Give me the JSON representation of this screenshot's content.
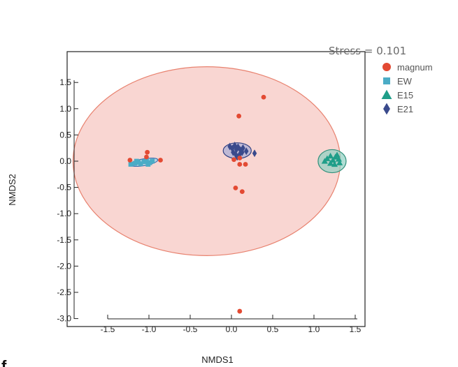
{
  "panel_letter": "f",
  "colors": {
    "magnum": "#e34a33",
    "EW": "#4bacc6",
    "E15": "#1f9e89",
    "E21": "#3a4a8c",
    "magnum_fill": "#f4b5ad",
    "magnum_edge": "#e8826f"
  },
  "chart_data": {
    "type": "scatter",
    "title": "",
    "xlabel": "NMDS1",
    "ylabel": "NMDS2",
    "annotation": "Stress = 0.101",
    "xlim": [
      -1.95,
      1.55
    ],
    "ylim": [
      -3.1,
      1.9
    ],
    "xticks": [
      -1.5,
      -1.0,
      -0.5,
      0.0,
      0.5,
      1.0,
      1.5
    ],
    "xtick_labels": [
      "-1.5",
      "-1.0",
      "-0.5",
      "0.0",
      "0.5",
      "1.0",
      "1.5"
    ],
    "yticks": [
      1.5,
      1.0,
      0.5,
      0.0,
      -0.5,
      -1.0,
      -1.5,
      -2.0,
      -2.5,
      -3.0
    ],
    "ytick_labels": [
      "1.5",
      "1.0",
      "0.5",
      "0.0",
      "-0.5",
      "-1.0",
      "-1.5",
      "-2.0",
      "-2.5",
      "-3.0"
    ],
    "legend_position": "top-right",
    "grid": false,
    "series": [
      {
        "name": "magnum",
        "marker": "circle",
        "points": [
          [
            -1.23,
            0.02
          ],
          [
            -1.02,
            0.17
          ],
          [
            -1.03,
            0.08
          ],
          [
            -0.86,
            0.02
          ],
          [
            0.09,
            0.86
          ],
          [
            0.39,
            1.22
          ],
          [
            0.03,
            0.03
          ],
          [
            0.1,
            0.06
          ],
          [
            0.1,
            -0.06
          ],
          [
            0.17,
            -0.06
          ],
          [
            0.05,
            -0.51
          ],
          [
            0.13,
            -0.58
          ],
          [
            0.1,
            -2.86
          ]
        ],
        "ellipse": {
          "cx": -0.3,
          "cy": 0.0,
          "rx": 1.62,
          "ry": 1.8,
          "angle": 0
        }
      },
      {
        "name": "EW",
        "marker": "square",
        "points": [
          [
            -1.22,
            -0.06
          ],
          [
            -1.17,
            -0.04
          ],
          [
            -1.13,
            -0.02
          ],
          [
            -1.1,
            -0.05
          ],
          [
            -1.06,
            -0.01
          ],
          [
            -1.03,
            0.0
          ],
          [
            -0.99,
            -0.03
          ],
          [
            -0.96,
            0.0
          ],
          [
            -1.15,
            0.0
          ],
          [
            -1.01,
            -0.06
          ]
        ],
        "ellipse": {
          "cx": -1.06,
          "cy": -0.02,
          "rx": 0.17,
          "ry": 0.065,
          "angle": -10
        }
      },
      {
        "name": "E15",
        "marker": "triangle",
        "points": [
          [
            1.16,
            0.05
          ],
          [
            1.2,
            0.1
          ],
          [
            1.23,
            0.02
          ],
          [
            1.26,
            0.08
          ],
          [
            1.3,
            0.04
          ],
          [
            1.2,
            -0.04
          ],
          [
            1.25,
            -0.06
          ],
          [
            1.31,
            -0.03
          ],
          [
            1.13,
            0.0
          ],
          [
            1.28,
            0.12
          ]
        ],
        "ellipse": {
          "cx": 1.22,
          "cy": 0.0,
          "rx": 0.17,
          "ry": 0.22,
          "angle": 0
        }
      },
      {
        "name": "E21",
        "marker": "diamond",
        "points": [
          [
            -0.02,
            0.28
          ],
          [
            0.01,
            0.24
          ],
          [
            0.04,
            0.3
          ],
          [
            0.06,
            0.22
          ],
          [
            0.08,
            0.27
          ],
          [
            0.11,
            0.21
          ],
          [
            0.14,
            0.25
          ],
          [
            0.02,
            0.17
          ],
          [
            0.05,
            0.13
          ],
          [
            0.1,
            0.13
          ],
          [
            0.13,
            0.17
          ],
          [
            0.28,
            0.15
          ],
          [
            0.18,
            0.19
          ],
          [
            0.07,
            0.08
          ]
        ],
        "ellipse": {
          "cx": 0.07,
          "cy": 0.2,
          "rx": 0.17,
          "ry": 0.15,
          "angle": 0
        }
      }
    ]
  }
}
